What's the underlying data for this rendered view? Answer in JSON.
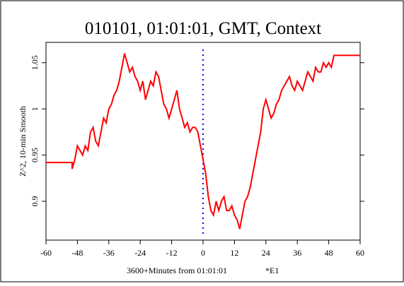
{
  "chart_data": {
    "type": "line",
    "title": "010101, 01:01:01, GMT, Context",
    "xlabel": "3600+Minutes from 01:01:01",
    "annotation": "*E1",
    "ylabel": "Z^2, 10-min Smooth",
    "x": [
      -60,
      -50,
      -50,
      -49,
      -48,
      -47,
      -46,
      -45,
      -44,
      -43,
      -42,
      -41,
      -40,
      -39,
      -38,
      -37,
      -36,
      -35,
      -34,
      -33,
      -32,
      -31,
      -30,
      -29,
      -28,
      -27,
      -26,
      -25,
      -24,
      -23,
      -22,
      -21,
      -20,
      -19,
      -18,
      -17,
      -16,
      -15,
      -14,
      -13,
      -12,
      -11,
      -10,
      -9,
      -8,
      -7,
      -6,
      -5,
      -4,
      -3,
      -2,
      -1,
      0,
      1,
      2,
      3,
      4,
      5,
      6,
      7,
      8,
      9,
      10,
      11,
      12,
      13,
      14,
      15,
      16,
      17,
      18,
      19,
      20,
      21,
      22,
      23,
      24,
      25,
      26,
      27,
      28,
      29,
      30,
      31,
      32,
      33,
      34,
      35,
      36,
      37,
      38,
      39,
      40,
      41,
      42,
      43,
      44,
      45,
      46,
      47,
      48,
      49,
      50,
      60
    ],
    "values": [
      0.942,
      0.942,
      0.935,
      0.945,
      0.96,
      0.955,
      0.95,
      0.96,
      0.955,
      0.975,
      0.98,
      0.965,
      0.96,
      0.975,
      0.99,
      0.985,
      1.0,
      1.005,
      1.015,
      1.02,
      1.03,
      1.045,
      1.06,
      1.05,
      1.04,
      1.045,
      1.035,
      1.03,
      1.02,
      1.03,
      1.01,
      1.02,
      1.03,
      1.025,
      1.04,
      1.035,
      1.02,
      1.005,
      1.0,
      0.99,
      1.0,
      1.01,
      1.02,
      1.0,
      0.99,
      0.98,
      0.985,
      0.975,
      0.98,
      0.98,
      0.975,
      0.96,
      0.945,
      0.93,
      0.905,
      0.89,
      0.885,
      0.9,
      0.89,
      0.9,
      0.905,
      0.89,
      0.89,
      0.895,
      0.885,
      0.88,
      0.87,
      0.885,
      0.9,
      0.905,
      0.915,
      0.93,
      0.945,
      0.96,
      0.975,
      1.0,
      1.01,
      1.0,
      0.99,
      0.995,
      1.005,
      1.01,
      1.02,
      1.025,
      1.03,
      1.035,
      1.025,
      1.02,
      1.03,
      1.025,
      1.02,
      1.03,
      1.04,
      1.035,
      1.03,
      1.045,
      1.04,
      1.04,
      1.05,
      1.045,
      1.05,
      1.045,
      1.058,
      1.058
    ],
    "color": "#ff0000",
    "reference_x": 0,
    "reference_color": "#0000ff",
    "xlim": [
      -60,
      60
    ],
    "xticks": [
      -60,
      -48,
      -36,
      -24,
      -12,
      0,
      12,
      24,
      36,
      48,
      60
    ],
    "ylim": [
      0.858,
      1.072
    ],
    "yticks": [
      0.9,
      0.95,
      1,
      1.05
    ]
  }
}
